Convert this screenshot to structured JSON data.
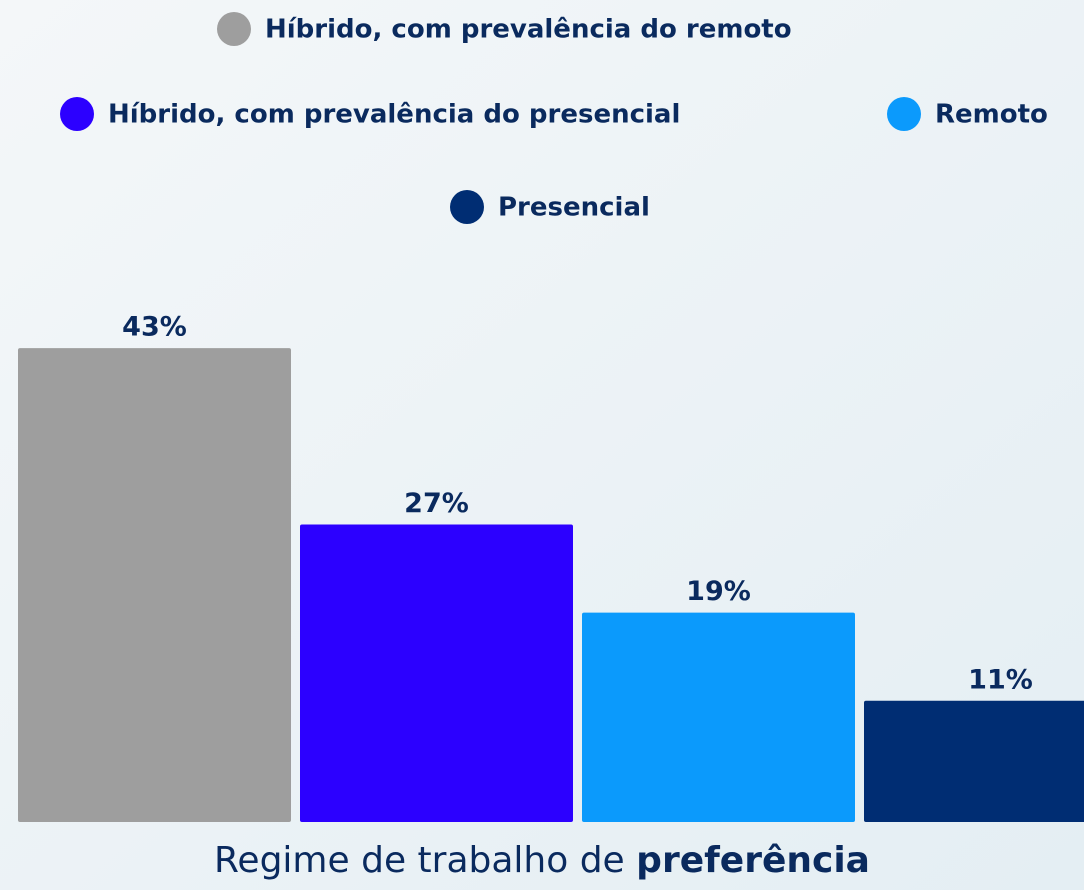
{
  "chart_data": {
    "type": "bar",
    "title": {
      "text": "Regime de trabalho de",
      "emphasis": "preferência"
    },
    "categories": [
      "Híbrido, com prevalência do remoto",
      "Híbrido, com prevalência do presencial",
      "Remoto",
      "Presencial"
    ],
    "values": [
      43,
      27,
      19,
      11
    ],
    "value_labels": [
      "43%",
      "27%",
      "19%",
      "11%"
    ],
    "colors": [
      "#9e9e9e",
      "#2c00ff",
      "#0b9afc",
      "#002d73"
    ],
    "ylim": [
      0,
      50
    ]
  }
}
